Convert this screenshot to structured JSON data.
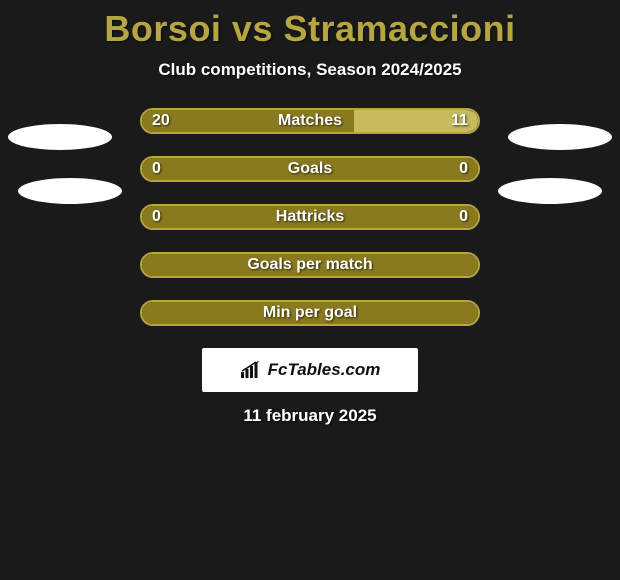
{
  "header": {
    "title": "Borsoi vs Stramaccioni",
    "subtitle": "Club competitions, Season 2024/2025"
  },
  "colors": {
    "accent": "#b5a642",
    "bar_border": "#b5a642",
    "fill_olive": "#8a7a1f",
    "fill_light": "#c6bb5e",
    "text": "#ffffff",
    "background": "#1a1a1a"
  },
  "rows": [
    {
      "label": "Matches",
      "left_value": "20",
      "right_value": "11",
      "left_pct": 63,
      "right_pct": 37,
      "fill_left_color": "#8a7a1f",
      "fill_right_color": "#c6bb5e",
      "show_values": true
    },
    {
      "label": "Goals",
      "left_value": "0",
      "right_value": "0",
      "left_pct": 0,
      "right_pct": 0,
      "fill_left_color": "#8a7a1f",
      "fill_right_color": "#8a7a1f",
      "show_values": true,
      "full_fill": true
    },
    {
      "label": "Hattricks",
      "left_value": "0",
      "right_value": "0",
      "left_pct": 0,
      "right_pct": 0,
      "fill_left_color": "#8a7a1f",
      "fill_right_color": "#8a7a1f",
      "show_values": true,
      "full_fill": true
    },
    {
      "label": "Goals per match",
      "show_values": false,
      "full_fill": true,
      "fill_left_color": "#8a7a1f"
    },
    {
      "label": "Min per goal",
      "show_values": false,
      "full_fill": true,
      "fill_left_color": "#8a7a1f"
    }
  ],
  "badge": {
    "text": "FcTables.com"
  },
  "footer": {
    "date": "11 february 2025"
  }
}
